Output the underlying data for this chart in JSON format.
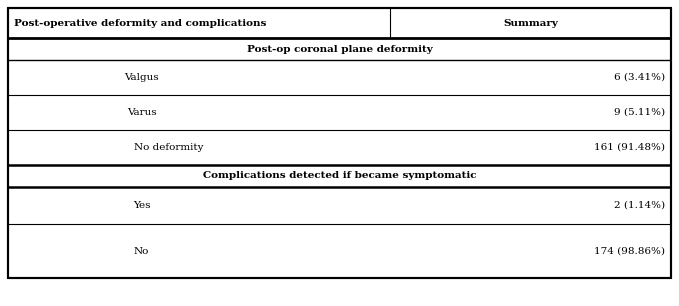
{
  "col1_header": "Post-operative deformity and complications",
  "col2_header": "Summary",
  "section1_title": "Post-op coronal plane deformity",
  "section2_title": "Complications detected if became symptomatic",
  "rows": [
    {
      "label": "Valgus",
      "value": "6 (3.41%)",
      "type": "data"
    },
    {
      "label": "Varus",
      "value": "9 (5.11%)",
      "type": "data"
    },
    {
      "label": "No deformity",
      "value": "161 (91.48%)",
      "type": "data_thick"
    },
    {
      "label": "Yes",
      "value": "2 (1.14%)",
      "type": "data"
    },
    {
      "label": "No",
      "value": "174 (98.86%)",
      "type": "data_last"
    }
  ],
  "bg_color": "#ffffff",
  "border_color": "#000000",
  "text_color": "#000000",
  "font_size": 7.5,
  "bold_font_size": 7.5
}
